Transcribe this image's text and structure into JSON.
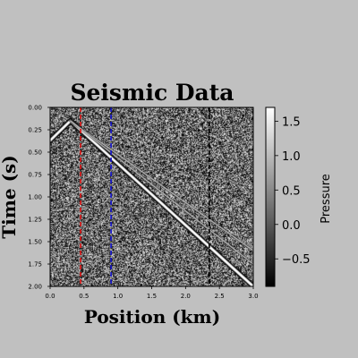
{
  "chart_data": {
    "type": "heatmap",
    "title": "Seismic Data",
    "xlabel": "Position (km)",
    "ylabel": "Time (s)",
    "xlim": [
      0.0,
      3.0
    ],
    "ylim": [
      2.0,
      0.0
    ],
    "x_ticks": [
      "0.0",
      "0.5",
      "1.0",
      "1.5",
      "2.0",
      "2.5",
      "3.0"
    ],
    "y_ticks": [
      "0.00",
      "0.25",
      "0.50",
      "0.75",
      "1.00",
      "1.25",
      "1.50",
      "1.75",
      "2.00"
    ],
    "colormap": "gray",
    "colorbar": {
      "label": "Pressure",
      "range": [
        -0.9,
        1.7
      ],
      "ticks": [
        "1.5",
        "1.0",
        "0.5",
        "0.0",
        "−0.5"
      ]
    },
    "events": [
      {
        "points": [
          [
            0.0,
            0.37
          ],
          [
            0.3,
            0.15
          ],
          [
            3.0,
            2.0
          ]
        ],
        "strength": "strong"
      },
      {
        "points": [
          [
            0.3,
            0.15
          ],
          [
            3.0,
            1.6
          ]
        ],
        "strength": "weak"
      },
      {
        "points": [
          [
            0.3,
            0.15
          ],
          [
            3.0,
            1.75
          ]
        ],
        "strength": "weak"
      }
    ],
    "vertical_lines": [
      {
        "x": 0.45,
        "color": "#dd1111",
        "style": "dashed"
      },
      {
        "x": 0.9,
        "color": "#1111cc",
        "style": "dashed"
      },
      {
        "x": 2.35,
        "color": "#000000",
        "style": "dashed"
      }
    ]
  }
}
